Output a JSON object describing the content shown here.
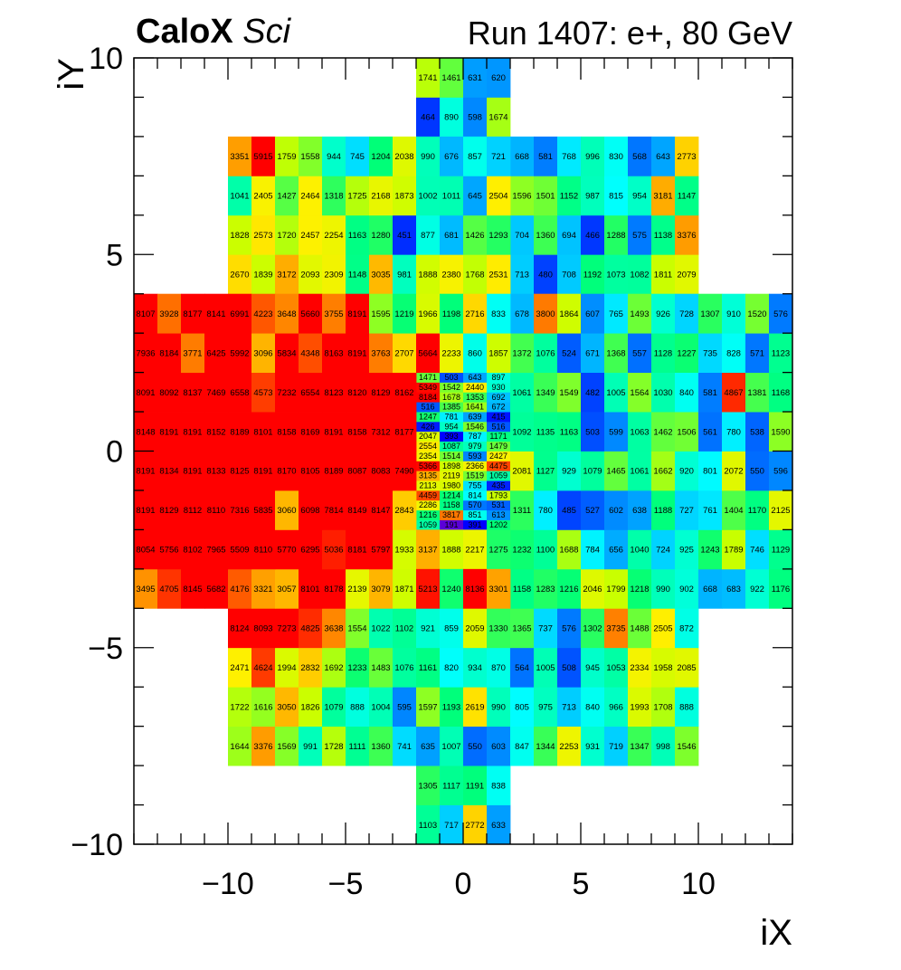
{
  "header": {
    "brand_bold": "CaloX",
    "brand_italic": "Sci",
    "run_label": "Run 1407: e+, 80 GeV"
  },
  "chart_data": {
    "type": "heatmap",
    "title": "",
    "xlabel": "iX",
    "ylabel": "iY",
    "xlim": [
      -14,
      14
    ],
    "ylim": [
      -10,
      10
    ],
    "x_ticks": [
      "−10",
      "−5",
      "0",
      "5",
      "10"
    ],
    "y_ticks": [
      "−10",
      "−5",
      "0",
      "5",
      "10"
    ],
    "colorscale": "rainbow",
    "value_range": [
      300,
      8200
    ],
    "background": "#ffffff",
    "blocks": [
      {
        "name": "central-fine",
        "x0": -2,
        "x1": 2,
        "y0": -2,
        "y1": 2,
        "rows": [
          [
            1059,
            191,
            391,
            1202
          ],
          [
            1216,
            3817,
            851,
            613
          ],
          [
            2286,
            1158,
            570,
            531
          ],
          [
            4459,
            1214,
            814,
            1793
          ],
          [
            2113,
            1980,
            755,
            435
          ],
          [
            3135,
            2119,
            1519,
            1059
          ],
          [
            5366,
            1898,
            2366,
            4475
          ],
          [
            2354,
            1514,
            593,
            2427
          ],
          [
            2554,
            1087,
            979,
            1479
          ],
          [
            2047,
            393,
            787,
            1171
          ],
          [
            426,
            954,
            1546,
            516
          ],
          [
            1247,
            781,
            639,
            415
          ],
          [
            516,
            1385,
            1641,
            672
          ],
          [
            8184,
            1678,
            1353,
            692
          ],
          [
            5349,
            1542,
            2440,
            930
          ],
          [
            1471,
            503,
            643,
            897
          ]
        ]
      },
      {
        "name": "top-column",
        "x0": -2,
        "x1": 2,
        "y0": 8,
        "y1": 10,
        "rows": [
          [
            464,
            890,
            598,
            1674
          ],
          [
            1741,
            1461,
            631,
            620
          ]
        ]
      },
      {
        "name": "bottom-column",
        "x0": -2,
        "x1": 2,
        "y0": -10,
        "y1": -8,
        "rows": [
          [
            1103,
            717,
            2772,
            633
          ],
          [
            1305,
            1117,
            1191,
            838
          ]
        ]
      },
      {
        "name": "upper-left",
        "x0": -10,
        "x1": -2,
        "y0": 4,
        "y1": 8,
        "rows": [
          [
            2670,
            1839,
            3172,
            2093,
            2309,
            1148,
            3035,
            981
          ],
          [
            1828,
            2573,
            1720,
            2457,
            2254,
            1163,
            1280,
            451
          ],
          [
            1041,
            2405,
            1427,
            2464,
            1318,
            1725,
            2168,
            1873
          ],
          [
            3351,
            5915,
            1759,
            1558,
            944,
            745,
            1204,
            2038
          ]
        ]
      },
      {
        "name": "upper-right",
        "x0": 2,
        "x1": 10,
        "y0": 4,
        "y1": 8,
        "rows": [
          [
            713,
            480,
            708,
            1192,
            1073,
            1082,
            1811,
            2079
          ],
          [
            704,
            1360,
            694,
            466,
            1288,
            575,
            1138,
            3376
          ],
          [
            1596,
            1501,
            1152,
            987,
            815,
            954,
            3181,
            1147
          ],
          [
            668,
            581,
            768,
            996,
            830,
            568,
            643,
            2773
          ]
        ]
      },
      {
        "name": "upper-middle",
        "x0": -2,
        "x1": 2,
        "y0": 4,
        "y1": 8,
        "rows": [
          [
            1888,
            2380,
            1768,
            2531
          ],
          [
            877,
            681,
            1426,
            1293
          ],
          [
            1002,
            1011,
            645,
            2504
          ],
          [
            990,
            676,
            857,
            721
          ]
        ]
      },
      {
        "name": "lower-left",
        "x0": -10,
        "x1": -2,
        "y0": -8,
        "y1": -4,
        "rows": [
          [
            1644,
            3376,
            1569,
            991,
            1728,
            1111,
            1360,
            741
          ],
          [
            1722,
            1616,
            3050,
            1826,
            1079,
            888,
            1004,
            595
          ],
          [
            2471,
            4624,
            1994,
            2832,
            1692,
            1233,
            1483,
            1076
          ],
          [
            8124,
            8093,
            7273,
            4825,
            3638,
            1554,
            1022,
            1102
          ]
        ]
      },
      {
        "name": "lower-middle",
        "x0": -2,
        "x1": 2,
        "y0": -8,
        "y1": -4,
        "rows": [
          [
            635,
            1007,
            550,
            603
          ],
          [
            1597,
            1193,
            2619,
            990
          ],
          [
            1161,
            820,
            934,
            870
          ],
          [
            921,
            859,
            2059,
            1330
          ]
        ]
      },
      {
        "name": "lower-right",
        "x0": 2,
        "x1": 10,
        "y0": -8,
        "y1": -4,
        "rows": [
          [
            847,
            1344,
            2253,
            931,
            719,
            1347,
            998,
            1546
          ],
          [
            805,
            975,
            713,
            840,
            966,
            1993,
            1708,
            888
          ],
          [
            564,
            1005,
            508,
            945,
            1053,
            2334,
            1958,
            2085
          ],
          [
            1365,
            737,
            576,
            1302,
            3735,
            1488,
            2505,
            872
          ]
        ]
      },
      {
        "name": "left-band",
        "x0": -14,
        "x1": -2,
        "y0": -4,
        "y1": 4,
        "rows": [
          [
            3495,
            4705,
            8145,
            5682,
            4176,
            3321,
            3057,
            8101,
            8178,
            2139,
            3079,
            1871
          ],
          [
            8054,
            5756,
            8102,
            7965,
            5509,
            8110,
            5770,
            6295,
            5036,
            8181,
            5797,
            1933
          ],
          [
            8191,
            8129,
            8112,
            8110,
            7316,
            5835,
            3060,
            6098,
            7814,
            8149,
            8147,
            2843
          ],
          [
            8191,
            8134,
            8191,
            8133,
            8125,
            8191,
            8170,
            8105,
            8189,
            8087,
            8083,
            7490
          ],
          [
            8148,
            8191,
            8191,
            8152,
            8189,
            8101,
            8158,
            8169,
            8191,
            8158,
            7312,
            8177
          ],
          [
            8091,
            8092,
            8137,
            7469,
            6558,
            4573,
            7232,
            6554,
            8123,
            8120,
            8129,
            8162
          ],
          [
            7936,
            8184,
            3771,
            6425,
            5992,
            3096,
            5834,
            4348,
            8163,
            8191,
            3763,
            2707
          ],
          [
            8107,
            3928,
            8177,
            8141,
            6991,
            4223,
            3648,
            5660,
            3755,
            8191,
            1595,
            1219
          ]
        ]
      },
      {
        "name": "right-band",
        "x0": 2,
        "x1": 14,
        "y0": -4,
        "y1": 4,
        "rows": [
          [
            1158,
            1283,
            1216,
            2046,
            1799,
            1218,
            990,
            902,
            668,
            683,
            922,
            1176
          ],
          [
            1232,
            1100,
            1688,
            784,
            656,
            1040,
            724,
            925,
            1243,
            1789,
            746,
            1129
          ],
          [
            1311,
            780,
            485,
            527,
            602,
            638,
            1188,
            727,
            761,
            1404,
            1170,
            2125
          ],
          [
            2081,
            1127,
            929,
            1079,
            1465,
            1061,
            1662,
            920,
            801,
            2072,
            550,
            596
          ],
          [
            1092,
            1135,
            1163,
            503,
            599,
            1063,
            1462,
            1506,
            561,
            780,
            538,
            1590
          ],
          [
            1061,
            1349,
            1549,
            482,
            1005,
            1564,
            1030,
            840,
            581,
            4867,
            1381,
            1168
          ],
          [
            1372,
            1076,
            524,
            671,
            1368,
            557,
            1128,
            1227,
            735,
            828,
            571,
            1123
          ],
          [
            678,
            3800,
            1864,
            607,
            765,
            1493,
            926,
            728,
            1307,
            910,
            1520,
            576
          ]
        ]
      },
      {
        "name": "row-y2-middle",
        "x0": -2,
        "x1": 2,
        "y0": 2,
        "y1": 3,
        "rows": [
          [
            5664,
            2233,
            860,
            1857
          ]
        ]
      },
      {
        "name": "row-y3-middle",
        "x0": -2,
        "x1": 2,
        "y0": 3,
        "y1": 4,
        "rows": [
          [
            1966,
            1198,
            2716,
            833
          ]
        ]
      },
      {
        "name": "row-y-3-middle",
        "x0": -2,
        "x1": 2,
        "y0": -3,
        "y1": -2,
        "rows": [
          [
            3137,
            1888,
            2217,
            1275
          ]
        ]
      },
      {
        "name": "row-y-4-middle",
        "x0": -2,
        "x1": 2,
        "y0": -4,
        "y1": -3,
        "rows": [
          [
            5213,
            1240,
            8136,
            3301
          ]
        ]
      }
    ]
  }
}
